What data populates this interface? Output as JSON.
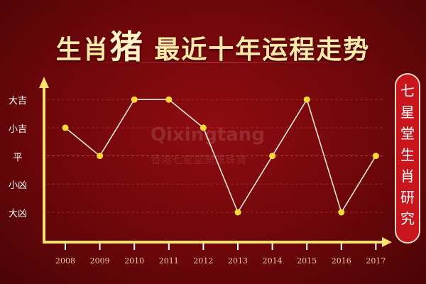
{
  "chart_data": {
    "type": "line",
    "title_parts": [
      "生肖",
      "猪",
      " 最近十年运程走势"
    ],
    "categories": [
      "2008",
      "2009",
      "2010",
      "2011",
      "2012",
      "2013",
      "2014",
      "2015",
      "2016",
      "2017"
    ],
    "y_levels": [
      "大凶",
      "小凶",
      "平",
      "小吉",
      "大吉"
    ],
    "values": [
      "小吉",
      "平",
      "大吉",
      "大吉",
      "小吉",
      "大凶",
      "平",
      "大吉",
      "大凶",
      "平"
    ],
    "grid": "horizontal dashed",
    "colors": {
      "line": "#f3e6d8",
      "marker": "#f7d93a",
      "axis": "#ffe36a",
      "background": "#7a080c"
    }
  },
  "side_banner": "七星堂生肖研究",
  "watermark": {
    "logo": "Qixingtang",
    "sub": "香港七星堂開運珠寶"
  }
}
